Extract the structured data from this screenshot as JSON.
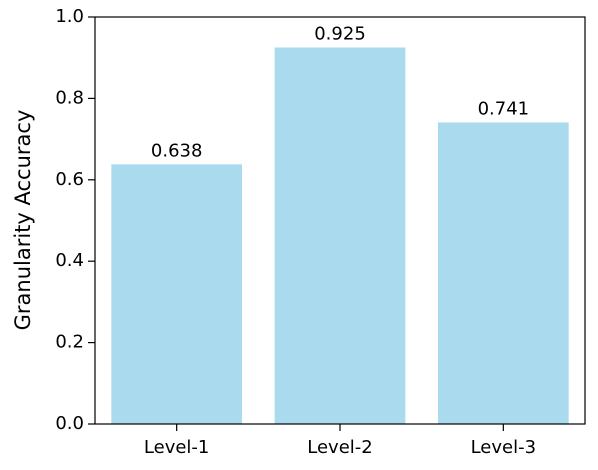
{
  "chart_data": {
    "type": "bar",
    "y_label": "Granularity Accuracy",
    "categories": [
      "Level-1",
      "Level-2",
      "Level-3"
    ],
    "values": [
      0.638,
      0.925,
      0.741
    ],
    "color": "#a9daee",
    "ylim": [
      0,
      1
    ],
    "yticks": [
      {
        "value": 0,
        "label": "0.0"
      },
      0.2,
      0.4,
      0.6,
      0.8,
      {
        "value": 1,
        "label": "1.0"
      }
    ],
    "grid": false
  }
}
